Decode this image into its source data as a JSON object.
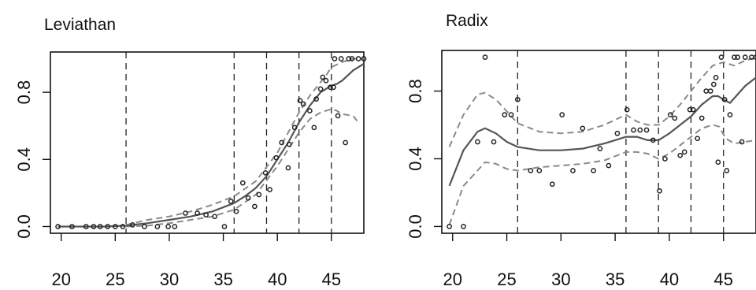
{
  "chart_data": [
    {
      "type": "scatter",
      "title": "Leviathan",
      "xlabel": "",
      "ylabel": "",
      "xlim": [
        19,
        48
      ],
      "ylim": [
        -0.04,
        1.04
      ],
      "x_ticks": [
        20,
        25,
        30,
        35,
        40,
        45
      ],
      "y_ticks": [
        0.0,
        0.4,
        0.8
      ],
      "x_tick_labels": [
        "20",
        "25",
        "30",
        "35",
        "40",
        "45"
      ],
      "y_tick_labels": [
        "0.0",
        "0.4",
        "0.8"
      ],
      "grid": false,
      "legend": "none",
      "vlines": [
        26,
        36,
        39,
        42,
        45
      ],
      "points": [
        [
          19.7,
          0.0
        ],
        [
          21,
          0.0
        ],
        [
          22.3,
          0.0
        ],
        [
          23,
          0.0
        ],
        [
          23.6,
          0.0
        ],
        [
          24.3,
          0.0
        ],
        [
          25,
          0.0
        ],
        [
          25.7,
          0.0
        ],
        [
          26.6,
          0.01
        ],
        [
          27.7,
          0.0
        ],
        [
          28.9,
          0.0
        ],
        [
          29.9,
          0.0
        ],
        [
          30.5,
          0.0
        ],
        [
          31.5,
          0.08
        ],
        [
          32.6,
          0.08
        ],
        [
          33.4,
          0.07
        ],
        [
          34.2,
          0.06
        ],
        [
          35.1,
          0.0
        ],
        [
          35.7,
          0.15
        ],
        [
          36.2,
          0.09
        ],
        [
          36.8,
          0.26
        ],
        [
          37.3,
          0.17
        ],
        [
          37.9,
          0.12
        ],
        [
          38.3,
          0.19
        ],
        [
          38.9,
          0.32
        ],
        [
          39.3,
          0.22
        ],
        [
          39.9,
          0.41
        ],
        [
          40.4,
          0.5
        ],
        [
          41,
          0.35
        ],
        [
          41.1,
          0.49
        ],
        [
          41.6,
          0.59
        ],
        [
          42.1,
          0.75
        ],
        [
          42.4,
          0.73
        ],
        [
          43,
          0.69
        ],
        [
          43.4,
          0.59
        ],
        [
          43.6,
          0.76
        ],
        [
          44,
          0.82
        ],
        [
          44.2,
          0.89
        ],
        [
          44.5,
          0.87
        ],
        [
          44.9,
          0.83
        ],
        [
          45.2,
          0.83
        ],
        [
          45.3,
          1.0
        ],
        [
          45.6,
          0.66
        ],
        [
          45.9,
          1.0
        ],
        [
          46.3,
          0.5
        ],
        [
          46.6,
          1.0
        ],
        [
          46.9,
          1.0
        ],
        [
          47.5,
          1.0
        ],
        [
          48,
          1.0
        ]
      ],
      "fit": [
        [
          19.7,
          0.0
        ],
        [
          22,
          0.0
        ],
        [
          24,
          0.0
        ],
        [
          26,
          0.005
        ],
        [
          28,
          0.02
        ],
        [
          30,
          0.04
        ],
        [
          32,
          0.06
        ],
        [
          34,
          0.09
        ],
        [
          36,
          0.14
        ],
        [
          37,
          0.18
        ],
        [
          38,
          0.23
        ],
        [
          39,
          0.3
        ],
        [
          40,
          0.4
        ],
        [
          41,
          0.5
        ],
        [
          42,
          0.62
        ],
        [
          43,
          0.72
        ],
        [
          44,
          0.8
        ],
        [
          45,
          0.84
        ],
        [
          45.5,
          0.85
        ],
        [
          46,
          0.87
        ],
        [
          47,
          0.93
        ],
        [
          48,
          0.97
        ]
      ],
      "ci_upper": [
        [
          26,
          0.01
        ],
        [
          28,
          0.04
        ],
        [
          30,
          0.06
        ],
        [
          32,
          0.09
        ],
        [
          34,
          0.13
        ],
        [
          36,
          0.18
        ],
        [
          38,
          0.27
        ],
        [
          40,
          0.44
        ],
        [
          42,
          0.68
        ],
        [
          43,
          0.78
        ],
        [
          44,
          0.86
        ],
        [
          44.5,
          0.9
        ],
        [
          45,
          0.95
        ],
        [
          46,
          0.98
        ],
        [
          47,
          1.0
        ],
        [
          48,
          1.0
        ]
      ],
      "ci_lower": [
        [
          26,
          0.0
        ],
        [
          28,
          0.005
        ],
        [
          30,
          0.02
        ],
        [
          32,
          0.04
        ],
        [
          34,
          0.06
        ],
        [
          36,
          0.1
        ],
        [
          38,
          0.19
        ],
        [
          40,
          0.36
        ],
        [
          42,
          0.56
        ],
        [
          43,
          0.64
        ],
        [
          44,
          0.68
        ],
        [
          45,
          0.7
        ],
        [
          45.5,
          0.69
        ],
        [
          46,
          0.67
        ],
        [
          47,
          0.66
        ],
        [
          47.5,
          0.62
        ]
      ]
    },
    {
      "type": "scatter",
      "title": "Radix",
      "xlabel": "",
      "ylabel": "",
      "xlim": [
        19,
        48
      ],
      "ylim": [
        -0.04,
        1.04
      ],
      "x_ticks": [
        20,
        25,
        30,
        35,
        40,
        45
      ],
      "y_ticks": [
        0.0,
        0.4,
        0.8
      ],
      "x_tick_labels": [
        "20",
        "25",
        "30",
        "35",
        "40",
        "45"
      ],
      "y_tick_labels": [
        "0.0",
        "0.4",
        "0.8"
      ],
      "grid": false,
      "legend": "none",
      "vlines": [
        26,
        36,
        39,
        42,
        45
      ],
      "points": [
        [
          19.7,
          0.0
        ],
        [
          21,
          0.0
        ],
        [
          22.3,
          0.5
        ],
        [
          23,
          1.0
        ],
        [
          23.8,
          0.5
        ],
        [
          24.8,
          0.66
        ],
        [
          25.4,
          0.66
        ],
        [
          26,
          0.75
        ],
        [
          27.2,
          0.33
        ],
        [
          28,
          0.33
        ],
        [
          29.2,
          0.25
        ],
        [
          30.1,
          0.66
        ],
        [
          31.1,
          0.33
        ],
        [
          32,
          0.58
        ],
        [
          33,
          0.33
        ],
        [
          33.6,
          0.46
        ],
        [
          34.4,
          0.36
        ],
        [
          35.2,
          0.55
        ],
        [
          36.1,
          0.69
        ],
        [
          36.7,
          0.57
        ],
        [
          37.3,
          0.57
        ],
        [
          37.9,
          0.57
        ],
        [
          38.5,
          0.51
        ],
        [
          39.1,
          0.21
        ],
        [
          39.6,
          0.4
        ],
        [
          40.1,
          0.66
        ],
        [
          40.5,
          0.64
        ],
        [
          41,
          0.42
        ],
        [
          41.4,
          0.44
        ],
        [
          41.9,
          0.69
        ],
        [
          42.2,
          0.69
        ],
        [
          42.6,
          0.52
        ],
        [
          43,
          0.64
        ],
        [
          43.4,
          0.8
        ],
        [
          43.8,
          0.8
        ],
        [
          44.1,
          0.84
        ],
        [
          44.3,
          0.88
        ],
        [
          44.5,
          0.38
        ],
        [
          44.8,
          1.0
        ],
        [
          45.1,
          0.75
        ],
        [
          45.3,
          0.33
        ],
        [
          45.6,
          0.66
        ],
        [
          46,
          1.0
        ],
        [
          46.3,
          1.0
        ],
        [
          46.7,
          0.5
        ],
        [
          47,
          1.0
        ],
        [
          47.6,
          1.0
        ],
        [
          48,
          1.0
        ]
      ],
      "fit": [
        [
          19.7,
          0.24
        ],
        [
          21,
          0.45
        ],
        [
          22.3,
          0.56
        ],
        [
          23,
          0.58
        ],
        [
          24,
          0.55
        ],
        [
          25,
          0.5
        ],
        [
          26,
          0.47
        ],
        [
          28,
          0.45
        ],
        [
          30,
          0.45
        ],
        [
          32,
          0.46
        ],
        [
          34,
          0.49
        ],
        [
          35,
          0.51
        ],
        [
          36,
          0.53
        ],
        [
          37,
          0.53
        ],
        [
          38,
          0.51
        ],
        [
          39,
          0.51
        ],
        [
          40,
          0.55
        ],
        [
          41,
          0.6
        ],
        [
          42,
          0.65
        ],
        [
          43,
          0.72
        ],
        [
          44,
          0.77
        ],
        [
          44.5,
          0.77
        ],
        [
          45,
          0.75
        ],
        [
          45.6,
          0.73
        ],
        [
          46.3,
          0.78
        ],
        [
          47,
          0.83
        ],
        [
          48,
          0.88
        ]
      ],
      "ci_upper": [
        [
          19.7,
          0.47
        ],
        [
          21,
          0.66
        ],
        [
          22.3,
          0.78
        ],
        [
          23,
          0.79
        ],
        [
          24,
          0.75
        ],
        [
          25,
          0.68
        ],
        [
          26,
          0.61
        ],
        [
          28,
          0.56
        ],
        [
          30,
          0.55
        ],
        [
          32,
          0.56
        ],
        [
          34,
          0.6
        ],
        [
          36,
          0.66
        ],
        [
          37,
          0.62
        ],
        [
          38,
          0.6
        ],
        [
          39,
          0.6
        ],
        [
          40,
          0.65
        ],
        [
          41,
          0.72
        ],
        [
          42,
          0.8
        ],
        [
          43,
          0.88
        ],
        [
          44,
          0.95
        ],
        [
          45,
          0.97
        ],
        [
          46,
          0.95
        ],
        [
          47,
          0.98
        ],
        [
          48,
          1.0
        ]
      ],
      "ci_lower": [
        [
          19.7,
          0.01
        ],
        [
          21,
          0.24
        ],
        [
          22.3,
          0.33
        ],
        [
          23,
          0.38
        ],
        [
          24,
          0.37
        ],
        [
          25,
          0.34
        ],
        [
          26,
          0.33
        ],
        [
          28,
          0.35
        ],
        [
          30,
          0.36
        ],
        [
          32,
          0.37
        ],
        [
          34,
          0.39
        ],
        [
          36,
          0.44
        ],
        [
          37,
          0.44
        ],
        [
          38,
          0.43
        ],
        [
          39,
          0.4
        ],
        [
          40,
          0.43
        ],
        [
          41,
          0.48
        ],
        [
          42,
          0.53
        ],
        [
          43,
          0.58
        ],
        [
          44,
          0.6
        ],
        [
          44.6,
          0.59
        ],
        [
          45.2,
          0.52
        ],
        [
          46,
          0.49
        ],
        [
          47,
          0.5
        ],
        [
          48,
          0.51
        ]
      ]
    }
  ]
}
